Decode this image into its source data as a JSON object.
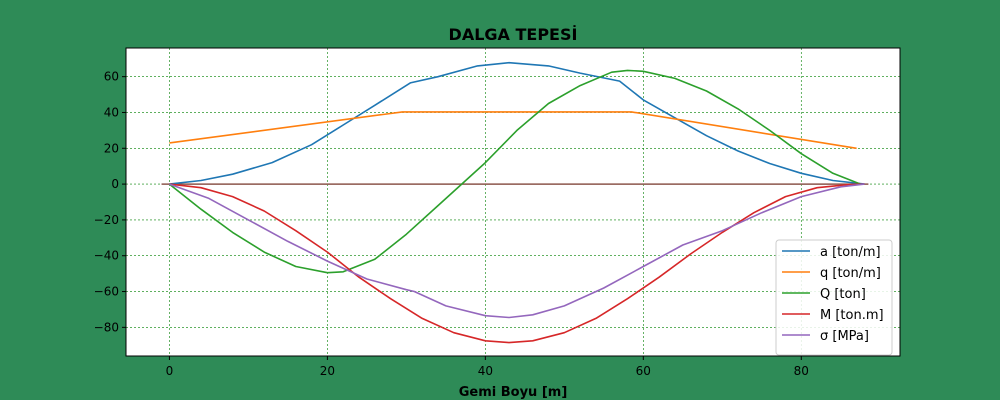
{
  "chart_data": {
    "type": "line",
    "title": "DALGA TEPESİ",
    "xlabel": "Gemi Boyu [m]",
    "ylabel": "",
    "xlim": [
      -5.5,
      92.5
    ],
    "ylim": [
      -96,
      76
    ],
    "xticks": [
      0,
      20,
      40,
      60,
      80
    ],
    "yticks": [
      -80,
      -60,
      -40,
      -20,
      0,
      20,
      40,
      60
    ],
    "grid": true,
    "legend": "lower-right",
    "zero_line": {
      "x": [
        -1,
        88.5
      ],
      "y": 0,
      "color": "#8c564b"
    },
    "series": [
      {
        "name": "a [ton/m]",
        "color": "#1f77b4",
        "x": [
          0,
          4,
          8,
          13,
          18,
          22,
          26,
          30.5,
          34,
          39,
          43,
          48,
          52,
          57,
          60,
          64,
          68,
          72,
          76,
          80,
          84,
          88
        ],
        "y": [
          0,
          2,
          5.5,
          12,
          22,
          33,
          44,
          56.5,
          60,
          66,
          67.8,
          66,
          62,
          57.5,
          47,
          37,
          27,
          18.5,
          11.5,
          6,
          2,
          0
        ]
      },
      {
        "name": "q [ton/m]",
        "color": "#ff7f0e",
        "x": [
          0,
          29.5,
          58.5,
          87
        ],
        "y": [
          23,
          40.3,
          40.3,
          20
        ]
      },
      {
        "name": "Q [ton]",
        "color": "#2ca02c",
        "x": [
          0,
          4,
          8,
          12,
          16,
          20,
          22,
          26,
          30,
          34,
          37,
          40,
          44,
          48,
          52,
          56,
          58,
          60,
          64,
          68,
          72,
          76,
          80,
          84,
          87.5
        ],
        "y": [
          0,
          -14,
          -27,
          -38,
          -46,
          -49.5,
          -49,
          -42,
          -28,
          -12,
          0,
          12,
          30,
          45,
          55,
          62.5,
          63.5,
          63,
          59,
          52,
          42,
          30,
          17,
          6,
          0
        ]
      },
      {
        "name": "M [ton.m]",
        "color": "#d62728",
        "x": [
          0,
          4,
          8,
          12,
          16,
          20,
          24,
          28,
          32,
          36,
          40,
          43,
          46,
          50,
          54,
          58,
          62,
          66,
          70,
          74,
          78,
          82,
          86,
          88
        ],
        "y": [
          0,
          -2,
          -7,
          -15,
          -26,
          -38,
          -52,
          -64,
          -75,
          -83,
          -87.5,
          -88.5,
          -87.5,
          -83,
          -75,
          -64,
          -52,
          -39,
          -27,
          -16,
          -7,
          -2,
          -0.3,
          0
        ]
      },
      {
        "name": "σ [MPa]",
        "color": "#9467bd",
        "x": [
          0,
          5,
          10,
          15,
          20,
          25,
          30,
          31,
          35,
          40,
          43,
          46,
          50,
          55,
          60,
          65,
          70,
          75,
          80,
          85,
          88
        ],
        "y": [
          0,
          -8,
          -20,
          -32,
          -43,
          -53,
          -59,
          -60,
          -68,
          -73.5,
          -74.5,
          -73,
          -68,
          -58,
          -46,
          -34,
          -26,
          -16,
          -7,
          -1.5,
          0
        ]
      }
    ]
  }
}
